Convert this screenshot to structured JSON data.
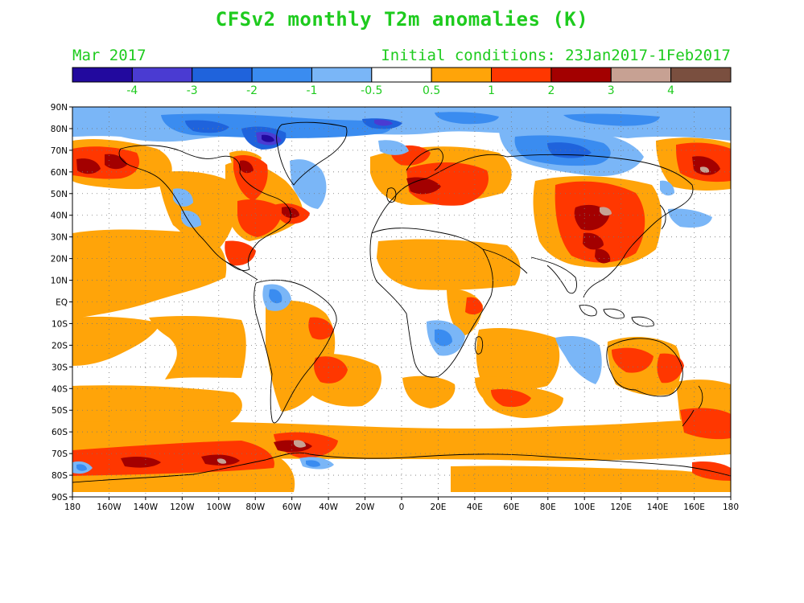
{
  "title": "CFSv2 monthly T2m anomalies (K)",
  "subtitle_left": "Mar 2017",
  "subtitle_right": "Initial conditions: 23Jan2017-1Feb2017",
  "colorbar": {
    "colors": [
      "#22099e",
      "#4a3bd2",
      "#1f63dc",
      "#3a8cf0",
      "#7ab6f7",
      "#ffffff",
      "#ffa409",
      "#ff3700",
      "#a30000",
      "#c7a193",
      "#7a4f3f"
    ],
    "labels": [
      "-4",
      "-3",
      "-2",
      "-1",
      "-0.5",
      "0.5",
      "1",
      "2",
      "3",
      "4"
    ]
  },
  "lat_labels": [
    "90N",
    "80N",
    "70N",
    "60N",
    "50N",
    "40N",
    "30N",
    "20N",
    "10N",
    "EQ",
    "10S",
    "20S",
    "30S",
    "40S",
    "50S",
    "60S",
    "70S",
    "80S",
    "90S"
  ],
  "lon_labels": [
    "180",
    "160W",
    "140W",
    "120W",
    "100W",
    "80W",
    "60W",
    "40W",
    "20W",
    "0",
    "20E",
    "40E",
    "60E",
    "80E",
    "100E",
    "120E",
    "140E",
    "160E",
    "180"
  ]
}
